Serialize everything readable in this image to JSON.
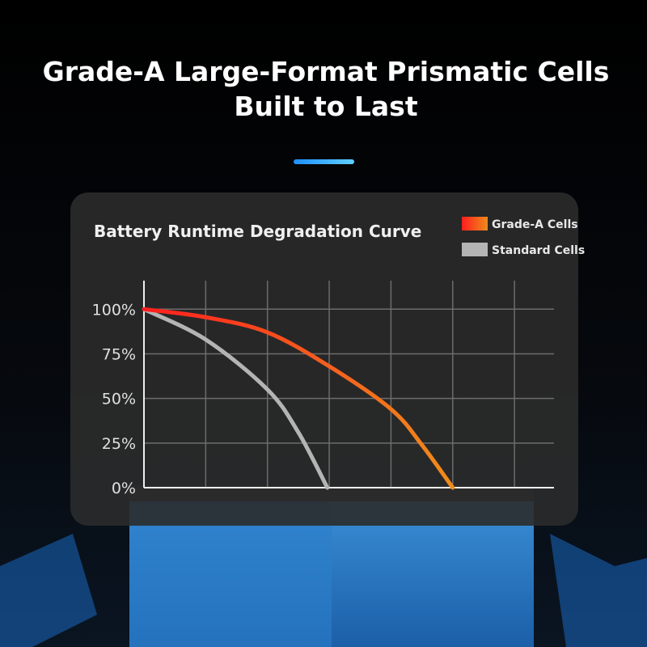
{
  "header": {
    "title": [
      "Grade-A Large-Format Prismatic Cells",
      "Built to Last"
    ]
  },
  "chart_data": {
    "type": "line",
    "title": "Battery Runtime Degradation Curve",
    "xlim": [
      0,
      6.64
    ],
    "xticks": [
      0,
      1,
      2,
      3,
      4,
      5,
      6
    ],
    "ylim": [
      0,
      116
    ],
    "yticks": [
      {
        "value": 0,
        "label": "0%"
      },
      {
        "value": 25,
        "label": "25%"
      },
      {
        "value": 50,
        "label": "50%"
      },
      {
        "value": 75,
        "label": "75%"
      },
      {
        "value": 100,
        "label": "100%"
      }
    ],
    "grid": true,
    "legend": "top-right",
    "series": [
      {
        "name": "Grade-A Cells",
        "gradient": [
          "#ff1e1e",
          "#ef8c1c"
        ],
        "x": [
          0,
          1,
          2,
          3,
          4,
          4.5,
          5
        ],
        "values": [
          100,
          95.5,
          87,
          68,
          44,
          24,
          0
        ]
      },
      {
        "name": "Standard Cells",
        "color": "#b4b4b4",
        "x": [
          0,
          1,
          2,
          2.5,
          2.97
        ],
        "values": [
          100,
          83,
          55,
          31,
          0
        ]
      }
    ]
  }
}
